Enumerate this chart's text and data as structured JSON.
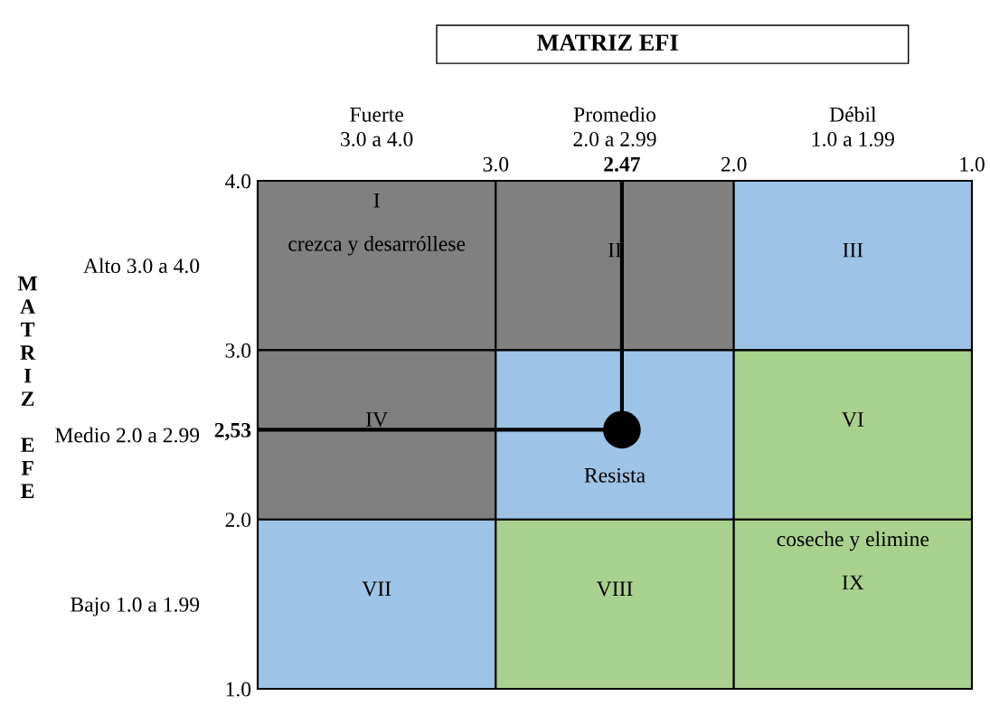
{
  "chart_data": [
    {
      "type": "other",
      "categories": [
        "Fuerte\n3.0 a 4.0",
        "Promedio\n2.0 a 2.99",
        "Débil\n1.0 a 1.99"
      ],
      "y_categories": [
        "Alto 3.0 a 4.0",
        "Medio 2.0 a 2.99",
        "Bajo 1.0 a 1.99"
      ],
      "cell_labels": [
        [
          "I\ncrezca y desarróllese",
          "II",
          "III"
        ],
        [
          "IV",
          "Resista",
          "VI"
        ],
        [
          "VII",
          "VIII",
          "coseche y elimine\nIX"
        ]
      ],
      "colors": [
        "#808080",
        "#808080",
        "#9dc3e6",
        "#808080",
        "#9dc3e6",
        "#a9d18e",
        "#9dc3e6",
        "#a9d18e",
        "#a9d18e"
      ]
    },
    {
      "type": "scatter",
      "xlabel": "MATRIZ EFI",
      "ylabel": "MATRIZ EFE",
      "x": [
        2.47
      ],
      "values": [
        2.53
      ],
      "color": "#000000",
      "marker": "circle",
      "xlim": [
        4.0,
        1.0
      ],
      "ylim": [
        1.0,
        4.0
      ],
      "xticks": [
        {
          "value": 3.0,
          "label": "3.0"
        },
        {
          "value": 2.47,
          "label": "2.47"
        },
        {
          "value": 2.0,
          "label": "2.0"
        },
        {
          "value": 1.0,
          "label": "1.0"
        }
      ],
      "yticks": [
        {
          "value": 4.0,
          "label": "4.0"
        },
        {
          "value": 3.0,
          "label": "3.0"
        },
        {
          "value": 2.53,
          "label": "2,53"
        },
        {
          "value": 2.0,
          "label": "2.0"
        },
        {
          "value": 1.0,
          "label": "1.0"
        }
      ],
      "ref_lines": [
        {
          "axis": "x",
          "value": 2.47,
          "color": "#000000"
        },
        {
          "axis": "y",
          "value": 2.53,
          "color": "#000000"
        }
      ]
    }
  ]
}
